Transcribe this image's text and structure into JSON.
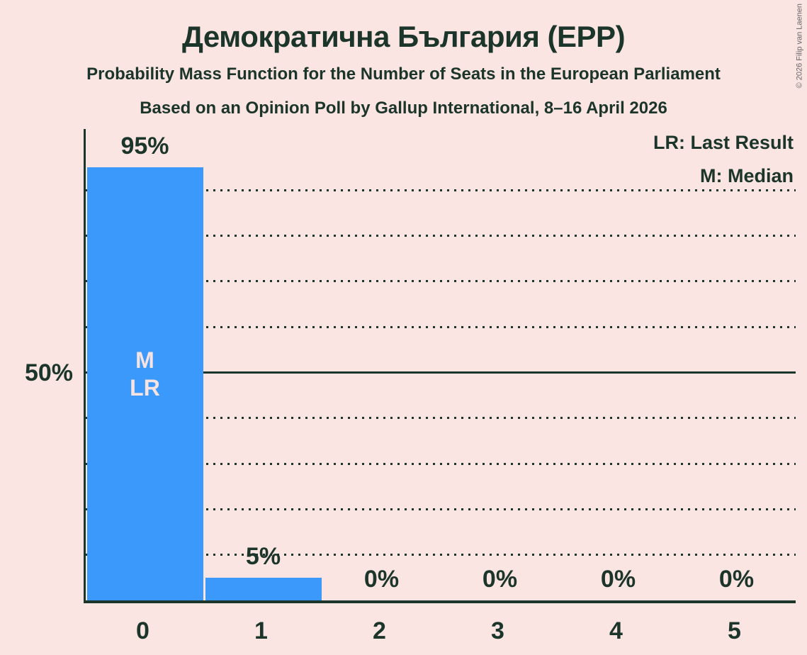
{
  "copyright": "© 2026 Filip van Laenen",
  "legend": {
    "lr_label": "LR: Last Result",
    "m_label": "M: Median"
  },
  "colors": {
    "background": "#fbe5e2",
    "text": "#1c352b",
    "bar": "#3b99fb",
    "bar_annotation_text": "#f7e3e1",
    "copyright_text": "#666666"
  },
  "chart_data": {
    "type": "bar",
    "title": "Демократична България (EPP)",
    "subtitle": "Probability Mass Function for the Number of Seats in the European Parliament",
    "source_line": "Based on an Opinion Poll by Gallup International, 8–16 April 2026",
    "xlabel": "",
    "ylabel": "",
    "categories": [
      "0",
      "1",
      "2",
      "3",
      "4",
      "5"
    ],
    "values": [
      95,
      5,
      0,
      0,
      0,
      0
    ],
    "value_labels": [
      "95%",
      "5%",
      "0%",
      "0%",
      "0%",
      "0%"
    ],
    "ylim": [
      0,
      103
    ],
    "ytick_label": "50%",
    "ytick_value": 50,
    "grid": true,
    "gridlines_dotted_percents": [
      10,
      20,
      30,
      40,
      60,
      70,
      80,
      90
    ],
    "gridlines_solid_percents": [
      50
    ],
    "legend_position": "top-right",
    "annotations": [
      {
        "category": 0,
        "lines": [
          "M",
          "LR"
        ]
      }
    ]
  }
}
